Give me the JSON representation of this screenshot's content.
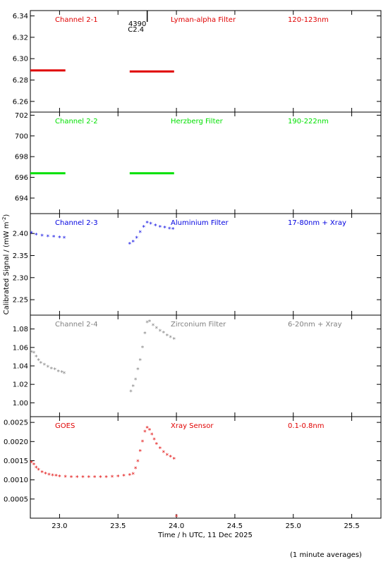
{
  "chart_data": {
    "type": "scatter",
    "xlabel": "Time / h UTC, 11 Dec 2025",
    "ylabel": "Calibrated Signal / (mW m",
    "ylabel_sup": "-2",
    "ylabel_close": ")",
    "footnote": "(1 minute averages)",
    "xlim": [
      22.75,
      25.75
    ],
    "xticks": [
      23.0,
      23.5,
      24.0,
      24.5,
      25.0,
      25.5
    ],
    "xticklabels": [
      "23.0",
      "23.5",
      "24.0",
      "24.5",
      "25.0",
      "25.5"
    ],
    "flare_marker": {
      "x": 23.75,
      "label_top": "4390",
      "label_bottom": "C2.4"
    },
    "panels": [
      {
        "name": "Channel 2-1",
        "filter": "Lyman-alpha Filter",
        "band": "120-123nm",
        "color": "#e00000",
        "marker": "dot",
        "ylim": [
          6.25,
          6.345
        ],
        "yticks": [
          6.26,
          6.28,
          6.3,
          6.32,
          6.34
        ],
        "yticklabels": [
          "6.26",
          "6.28",
          "6.30",
          "6.32",
          "6.34"
        ],
        "segments": [
          {
            "x0": 22.75,
            "x1": 23.05,
            "y0": 6.289,
            "y1": 6.289
          },
          {
            "x0": 23.6,
            "x1": 23.98,
            "y0": 6.288,
            "y1": 6.288
          }
        ]
      },
      {
        "name": "Channel 2-2",
        "filter": "Herzberg Filter",
        "band": "190-222nm",
        "color": "#00e000",
        "marker": "dot",
        "ylim": [
          692.5,
          702.3
        ],
        "yticks": [
          694,
          696,
          698,
          700,
          702
        ],
        "yticklabels": [
          "694",
          "696",
          "698",
          "700",
          "702"
        ],
        "segments": [
          {
            "x0": 22.75,
            "x1": 23.05,
            "y0": 696.4,
            "y1": 696.4
          },
          {
            "x0": 23.6,
            "x1": 23.98,
            "y0": 696.4,
            "y1": 696.4
          }
        ]
      },
      {
        "name": "Channel 2-3",
        "filter": "Aluminium Filter",
        "band": "17-80nm + Xray",
        "color": "#0000e0",
        "marker": "star",
        "ylim": [
          2.215,
          2.445
        ],
        "yticks": [
          2.25,
          2.3,
          2.35,
          2.4
        ],
        "yticklabels": [
          "2.25",
          "2.30",
          "2.35",
          "2.40"
        ],
        "points": [
          [
            22.76,
            2.401
          ],
          [
            22.8,
            2.397
          ],
          [
            22.85,
            2.395
          ],
          [
            22.9,
            2.393
          ],
          [
            22.95,
            2.392
          ],
          [
            23.0,
            2.391
          ],
          [
            23.04,
            2.39
          ],
          [
            23.6,
            2.376
          ],
          [
            23.63,
            2.381
          ],
          [
            23.66,
            2.39
          ],
          [
            23.69,
            2.403
          ],
          [
            23.72,
            2.415
          ],
          [
            23.75,
            2.424
          ],
          [
            23.78,
            2.422
          ],
          [
            23.82,
            2.418
          ],
          [
            23.86,
            2.415
          ],
          [
            23.9,
            2.413
          ],
          [
            23.94,
            2.411
          ],
          [
            23.97,
            2.41
          ]
        ]
      },
      {
        "name": "Channel 2-4",
        "filter": "Zirconium Filter",
        "band": "6-20nm + Xray",
        "color": "#808080",
        "marker": "star",
        "ylim": [
          0.985,
          1.095
        ],
        "yticks": [
          1.0,
          1.02,
          1.04,
          1.06,
          1.08
        ],
        "yticklabels": [
          "1.00",
          "1.02",
          "1.04",
          "1.06",
          "1.08"
        ],
        "points": [
          [
            22.76,
            1.055
          ],
          [
            22.78,
            1.054
          ],
          [
            22.8,
            1.05
          ],
          [
            22.82,
            1.046
          ],
          [
            22.84,
            1.043
          ],
          [
            22.87,
            1.041
          ],
          [
            22.9,
            1.039
          ],
          [
            22.93,
            1.037
          ],
          [
            22.96,
            1.036
          ],
          [
            22.99,
            1.034
          ],
          [
            23.02,
            1.033
          ],
          [
            23.04,
            1.032
          ],
          [
            23.61,
            1.012
          ],
          [
            23.63,
            1.018
          ],
          [
            23.65,
            1.025
          ],
          [
            23.67,
            1.036
          ],
          [
            23.69,
            1.046
          ],
          [
            23.71,
            1.06
          ],
          [
            23.73,
            1.075
          ],
          [
            23.75,
            1.087
          ],
          [
            23.77,
            1.088
          ],
          [
            23.8,
            1.084
          ],
          [
            23.83,
            1.081
          ],
          [
            23.86,
            1.078
          ],
          [
            23.89,
            1.076
          ],
          [
            23.92,
            1.073
          ],
          [
            23.95,
            1.071
          ],
          [
            23.98,
            1.069
          ]
        ]
      },
      {
        "name": "GOES",
        "filter": "Xray Sensor",
        "band": "0.1-0.8nm",
        "color": "#e00000",
        "marker": "star",
        "ylim": [
          0.0,
          0.00265
        ],
        "yticks": [
          0.0005,
          0.001,
          0.0015,
          0.002,
          0.0025
        ],
        "yticklabels": [
          "0.0005",
          "0.0010",
          "0.0015",
          "0.0020",
          "0.0025"
        ],
        "points": [
          [
            22.76,
            0.00145
          ],
          [
            22.78,
            0.0014
          ],
          [
            22.8,
            0.00132
          ],
          [
            22.82,
            0.00126
          ],
          [
            22.85,
            0.0012
          ],
          [
            22.88,
            0.00116
          ],
          [
            22.91,
            0.00113
          ],
          [
            22.94,
            0.00111
          ],
          [
            22.97,
            0.0011
          ],
          [
            23.0,
            0.00109
          ],
          [
            23.05,
            0.00108
          ],
          [
            23.1,
            0.00107
          ],
          [
            23.15,
            0.00107
          ],
          [
            23.2,
            0.00107
          ],
          [
            23.25,
            0.00107
          ],
          [
            23.3,
            0.00107
          ],
          [
            23.35,
            0.00107
          ],
          [
            23.4,
            0.00107
          ],
          [
            23.45,
            0.00108
          ],
          [
            23.5,
            0.00109
          ],
          [
            23.55,
            0.0011
          ],
          [
            23.6,
            0.00112
          ],
          [
            23.63,
            0.00115
          ],
          [
            23.65,
            0.0013
          ],
          [
            23.67,
            0.00148
          ],
          [
            23.69,
            0.00175
          ],
          [
            23.71,
            0.002
          ],
          [
            23.73,
            0.00225
          ],
          [
            23.75,
            0.00236
          ],
          [
            23.77,
            0.0023
          ],
          [
            23.79,
            0.00218
          ],
          [
            23.81,
            0.00205
          ],
          [
            23.83,
            0.00193
          ],
          [
            23.86,
            0.00182
          ],
          [
            23.89,
            0.00172
          ],
          [
            23.92,
            0.00165
          ],
          [
            23.95,
            0.0016
          ],
          [
            23.98,
            0.00155
          ],
          [
            24.0,
            5e-05
          ]
        ]
      }
    ]
  }
}
